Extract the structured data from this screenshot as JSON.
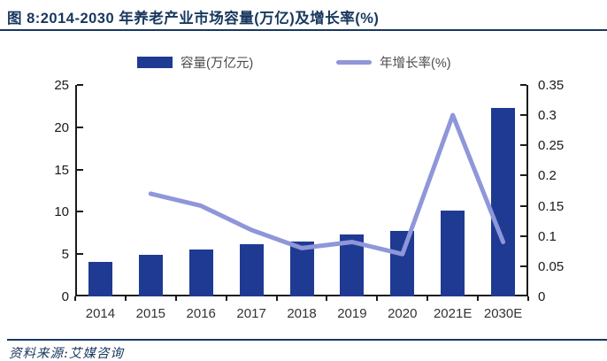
{
  "header": {
    "title": "图 8:2014-2030 年养老产业市场容量(万亿)及增长率(%)"
  },
  "legend": {
    "bar_label": "容量(万亿元)",
    "line_label": "年增长率(%)"
  },
  "footer": {
    "source": "资料来源:艾媒咨询"
  },
  "colors": {
    "accent_navy": "#17375E",
    "bar_fill": "#1F3A93",
    "line_stroke": "#8F96D9",
    "axis": "#1a1a1a"
  },
  "chart_data": {
    "type": "bar",
    "subtype": "combo-bar-line-dual-axis",
    "title": "2014-2030 年养老产业市场容量(万亿)及增长率(%)",
    "categories": [
      "2014",
      "2015",
      "2016",
      "2017",
      "2018",
      "2019",
      "2020",
      "2021E",
      "2030E"
    ],
    "series": [
      {
        "name": "容量(万亿元)",
        "type": "bar",
        "axis": "left",
        "values": [
          4.1,
          4.9,
          5.5,
          6.2,
          6.5,
          7.3,
          7.7,
          10.1,
          22.3
        ]
      },
      {
        "name": "年增长率(%)",
        "type": "line",
        "axis": "right",
        "values": [
          null,
          0.17,
          0.15,
          0.11,
          0.08,
          0.09,
          0.07,
          0.3,
          0.09
        ]
      }
    ],
    "left_axis": {
      "label": "",
      "range": [
        0,
        25
      ],
      "ticks": [
        0,
        5,
        10,
        15,
        20,
        25
      ]
    },
    "right_axis": {
      "label": "",
      "range": [
        0,
        0.35
      ],
      "ticks": [
        0,
        0.05,
        0.1,
        0.15,
        0.2,
        0.25,
        0.3,
        0.35
      ]
    },
    "grid": false,
    "legend_position": "top",
    "xlabel": "",
    "ylabel": ""
  }
}
